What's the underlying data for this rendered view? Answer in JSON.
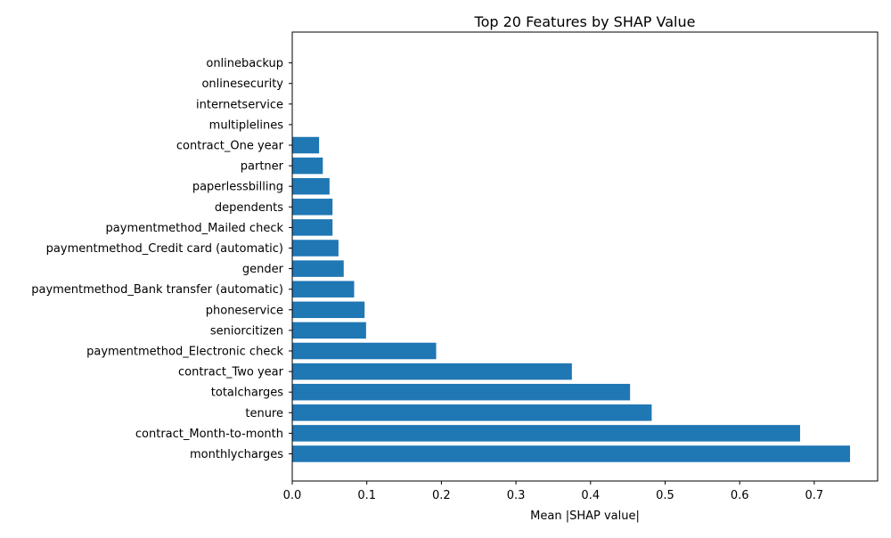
{
  "chart_data": {
    "type": "bar",
    "orientation": "horizontal",
    "title": "Top 20 Features by SHAP Value",
    "xlabel": "Mean |SHAP value|",
    "ylabel": "",
    "xlim": [
      0,
      0.785
    ],
    "xticks": [
      "0.0",
      "0.1",
      "0.2",
      "0.3",
      "0.4",
      "0.5",
      "0.6",
      "0.7"
    ],
    "xtick_values": [
      0.0,
      0.1,
      0.2,
      0.3,
      0.4,
      0.5,
      0.6,
      0.7
    ],
    "grid": false,
    "bar_color": "#1f77b4",
    "categories": [
      "monthlycharges",
      "contract_Month-to-month",
      "tenure",
      "totalcharges",
      "contract_Two year",
      "paymentmethod_Electronic check",
      "seniorcitizen",
      "phoneservice",
      "paymentmethod_Bank transfer (automatic)",
      "gender",
      "paymentmethod_Credit card (automatic)",
      "paymentmethod_Mailed check",
      "dependents",
      "paperlessbilling",
      "partner",
      "contract_One year",
      "multiplelines",
      "internetservice",
      "onlinesecurity",
      "onlinebackup"
    ],
    "values": [
      0.748,
      0.681,
      0.482,
      0.453,
      0.375,
      0.193,
      0.099,
      0.097,
      0.083,
      0.069,
      0.062,
      0.054,
      0.054,
      0.05,
      0.041,
      0.036,
      0.0,
      0.0,
      0.0,
      0.0
    ]
  }
}
